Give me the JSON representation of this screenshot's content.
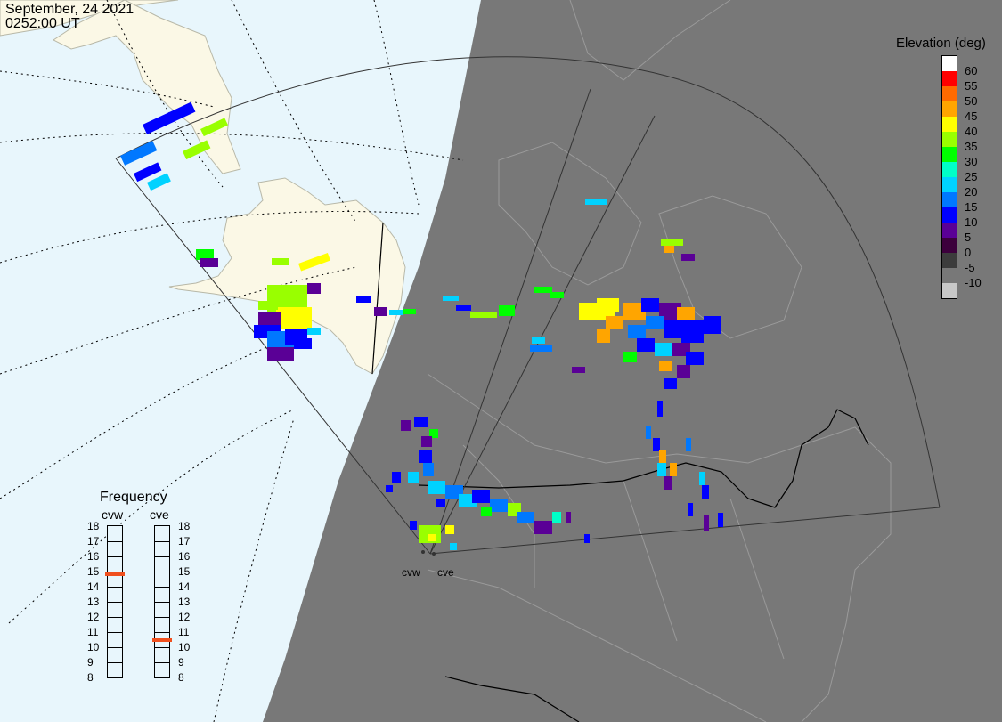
{
  "header": {
    "date": "September, 24 2021",
    "time": "0252:00 UT"
  },
  "legend": {
    "title": "Elevation (deg)",
    "levels": [
      {
        "label": "60",
        "color": "#ffffff"
      },
      {
        "label": "55",
        "color": "#ff0000"
      },
      {
        "label": "50",
        "color": "#ff6a00"
      },
      {
        "label": "45",
        "color": "#ffa500"
      },
      {
        "label": "40",
        "color": "#ffff00"
      },
      {
        "label": "35",
        "color": "#99ff00"
      },
      {
        "label": "30",
        "color": "#00ff00"
      },
      {
        "label": "25",
        "color": "#00ffc8"
      },
      {
        "label": "20",
        "color": "#00d2ff"
      },
      {
        "label": "15",
        "color": "#0078ff"
      },
      {
        "label": "10",
        "color": "#0000ff"
      },
      {
        "label": "5",
        "color": "#5a0096"
      },
      {
        "label": "0",
        "color": "#3c003c"
      },
      {
        "label": "-5",
        "color": "#3c3c3c"
      },
      {
        "label": "-10",
        "color": "#787878"
      },
      {
        "label": "",
        "color": "#c8c8c8"
      }
    ]
  },
  "frequency": {
    "title": "Frequency",
    "scale": [
      "18",
      "17",
      "16",
      "15",
      "14",
      "13",
      "12",
      "11",
      "10",
      "9",
      "8"
    ],
    "radars": [
      {
        "name": "cvw",
        "value_mhz": 14.8
      },
      {
        "name": "cve",
        "value_mhz": 10.5
      }
    ]
  },
  "sites": [
    "cvw",
    "cve"
  ],
  "colors": {
    "ocean": "#e8f6fc",
    "land": "#fbf8e6",
    "night": "#787878",
    "night_land_edge": "#9a9a9a"
  }
}
